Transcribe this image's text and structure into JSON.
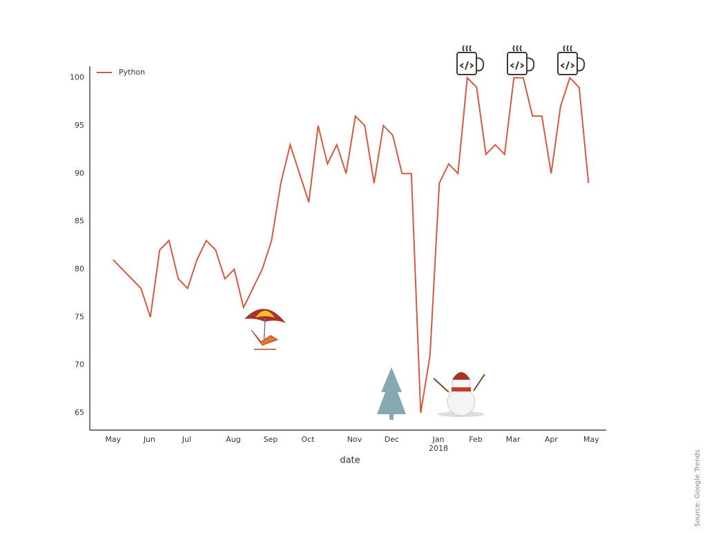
{
  "chart_data": {
    "type": "line",
    "x_label": "date",
    "source": "Source: Google Trends",
    "x": [
      0,
      1,
      2,
      3,
      4,
      5,
      6,
      7,
      8,
      9,
      10,
      11,
      12,
      13,
      14,
      15,
      16,
      17,
      18,
      19,
      20,
      21,
      22,
      23,
      24,
      25,
      26,
      27,
      28,
      29,
      30,
      31,
      32,
      33,
      34,
      35,
      36,
      37,
      38,
      39,
      40,
      41,
      42,
      43,
      44,
      45,
      46,
      47,
      48,
      49,
      50,
      51
    ],
    "series": [
      {
        "name": "Python",
        "color": "#d9573f",
        "values": [
          81,
          80,
          79,
          78,
          75,
          82,
          83,
          79,
          78,
          81,
          83,
          82,
          79,
          80,
          76,
          78,
          80,
          83,
          89,
          93,
          90,
          87,
          95,
          91,
          93,
          90,
          96,
          95,
          89,
          95,
          94,
          90,
          90,
          65,
          71,
          89,
          91,
          90,
          100,
          99,
          92,
          93,
          92,
          100,
          100,
          96,
          96,
          90,
          97,
          100,
          99,
          89
        ]
      }
    ],
    "xlim": [
      -2.5,
      52.9
    ],
    "xticks": [
      {
        "value": 0,
        "label": "May"
      },
      {
        "value": 3.9,
        "label": "Jun"
      },
      {
        "value": 7.9,
        "label": "Jul"
      },
      {
        "value": 12.9,
        "label": "Aug"
      },
      {
        "value": 16.9,
        "label": "Sep"
      },
      {
        "value": 20.9,
        "label": "Oct"
      },
      {
        "value": 25.9,
        "label": "Nov"
      },
      {
        "value": 29.9,
        "label": "Dec"
      },
      {
        "value": 34.9,
        "label": "Jan",
        "sublabel": "2018"
      },
      {
        "value": 38.9,
        "label": "Feb"
      },
      {
        "value": 42.9,
        "label": "Mar"
      },
      {
        "value": 47,
        "label": "Apr"
      },
      {
        "value": 51.3,
        "label": "May"
      }
    ],
    "ylim": [
      63.2,
      101.2
    ],
    "yticks": [
      65,
      70,
      75,
      80,
      85,
      90,
      95,
      100
    ],
    "grid": false,
    "legend": "upper left"
  }
}
